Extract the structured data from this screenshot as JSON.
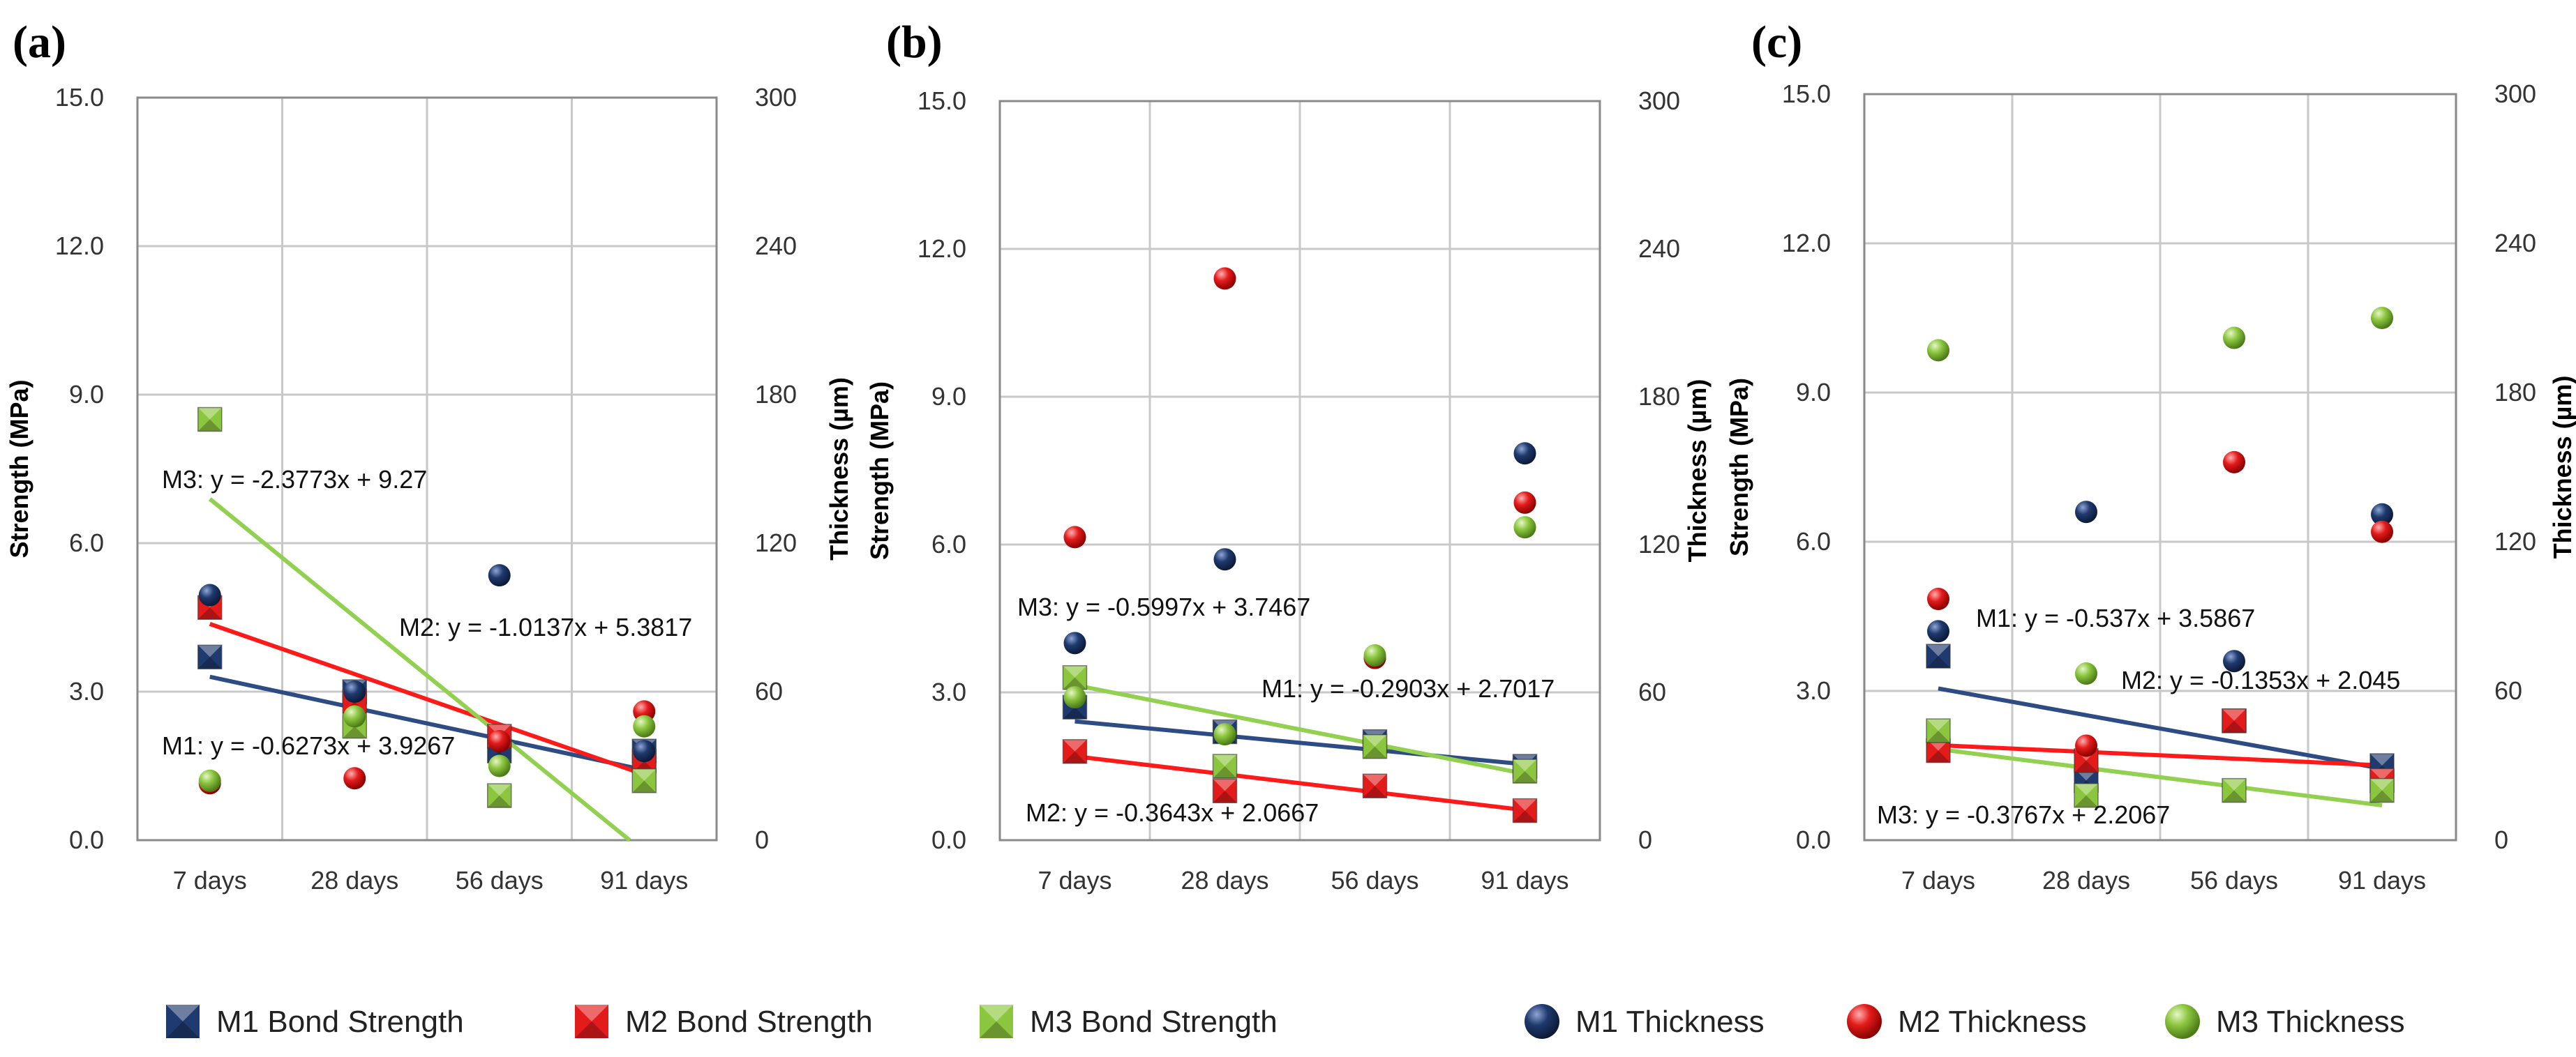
{
  "colors": {
    "M1": "#1f3a6e",
    "M2": "#e31b1b",
    "M3": "#8cc63f",
    "M1_line": "#2e4c84",
    "M2_line": "#ff1a1a",
    "M3_line": "#92d050",
    "grid": "#c8c8c8",
    "frame": "#8a8a8a"
  },
  "legend": [
    {
      "series": "M1",
      "kind": "square",
      "label": "M1 Bond Strength"
    },
    {
      "series": "M2",
      "kind": "square",
      "label": "M2 Bond Strength"
    },
    {
      "series": "M3",
      "kind": "square",
      "label": "M3 Bond Strength"
    },
    {
      "series": "M1",
      "kind": "sphere",
      "label": "M1 Thickness"
    },
    {
      "series": "M2",
      "kind": "sphere",
      "label": "M2 Thickness"
    },
    {
      "series": "M3",
      "kind": "sphere",
      "label": "M3 Thickness"
    }
  ],
  "chart_data": [
    {
      "panel": "(a)",
      "type": "scatter",
      "categories": [
        "7 days",
        "28 days",
        "56 days",
        "91 days"
      ],
      "ylabel": "Strength (MPa)",
      "y2label": "Thickness (µm)",
      "ylim": [
        0,
        15
      ],
      "y2lim": [
        0,
        300
      ],
      "yticks": [
        "0.0",
        "3.0",
        "6.0",
        "9.0",
        "12.0",
        "15.0"
      ],
      "y2ticks": [
        "0",
        "60",
        "120",
        "180",
        "240",
        "300"
      ],
      "strength": {
        "M1": [
          3.7,
          3.0,
          1.8,
          1.8
        ],
        "M2": [
          4.7,
          2.8,
          2.1,
          1.6
        ],
        "M3": [
          8.5,
          2.3,
          0.9,
          1.2
        ]
      },
      "thickness": {
        "M1": [
          99,
          60,
          107,
          36
        ],
        "M2": [
          23,
          25,
          40,
          52
        ],
        "M3": [
          24,
          50,
          30,
          46
        ]
      },
      "trendlines": [
        {
          "series": "M1",
          "slope": -0.6273,
          "intercept": 3.9267,
          "label": "M1: y = -0.6273x + 3.9267"
        },
        {
          "series": "M2",
          "slope": -1.0137,
          "intercept": 5.3817,
          "label": "M2: y = -1.0137x + 5.3817"
        },
        {
          "series": "M3",
          "slope": -2.3773,
          "intercept": 9.27,
          "label": "M3: y = -2.3773x + 9.27"
        }
      ]
    },
    {
      "panel": "(b)",
      "type": "scatter",
      "categories": [
        "7 days",
        "28 days",
        "56 days",
        "91 days"
      ],
      "ylabel": "Strength (MPa)",
      "y2label": "Thickness (µm)",
      "ylim": [
        0,
        15
      ],
      "y2lim": [
        0,
        300
      ],
      "yticks": [
        "0.0",
        "3.0",
        "6.0",
        "9.0",
        "12.0",
        "15.0"
      ],
      "y2ticks": [
        "0",
        "60",
        "120",
        "180",
        "240",
        "300"
      ],
      "strength": {
        "M1": [
          2.7,
          2.2,
          2.0,
          1.5
        ],
        "M2": [
          1.8,
          1.0,
          1.1,
          0.6
        ],
        "M3": [
          3.3,
          1.5,
          1.9,
          1.4
        ]
      },
      "thickness": {
        "M1": [
          80,
          114,
          74,
          157
        ],
        "M2": [
          123,
          228,
          74,
          137
        ],
        "M3": [
          58,
          43,
          75,
          127
        ]
      },
      "trendlines": [
        {
          "series": "M1",
          "slope": -0.2903,
          "intercept": 2.7017,
          "label": "M1: y = -0.2903x + 2.7017"
        },
        {
          "series": "M2",
          "slope": -0.3643,
          "intercept": 2.0667,
          "label": "M2: y = -0.3643x + 2.0667"
        },
        {
          "series": "M3",
          "slope": -0.5997,
          "intercept": 3.7467,
          "label": "M3: y = -0.5997x + 3.7467"
        }
      ]
    },
    {
      "panel": "(c)",
      "type": "scatter",
      "categories": [
        "7 days",
        "28 days",
        "56 days",
        "91 days"
      ],
      "ylabel": "Strength (MPa)",
      "y2label": "Thickness (µm)",
      "ylim": [
        0,
        15
      ],
      "y2lim": [
        0,
        300
      ],
      "yticks": [
        "0.0",
        "3.0",
        "6.0",
        "9.0",
        "12.0",
        "15.0"
      ],
      "y2ticks": [
        "0",
        "60",
        "120",
        "180",
        "240",
        "300"
      ],
      "strength": {
        "M1": [
          3.7,
          1.2,
          2.4,
          1.5
        ],
        "M2": [
          1.8,
          1.6,
          2.4,
          1.2
        ],
        "M3": [
          2.2,
          0.9,
          1.0,
          1.0
        ]
      },
      "thickness": {
        "M1": [
          84,
          132,
          72,
          131
        ],
        "M2": [
          97,
          38,
          152,
          124
        ],
        "M3": [
          197,
          67,
          202,
          210
        ]
      },
      "trendlines": [
        {
          "series": "M1",
          "slope": -0.537,
          "intercept": 3.5867,
          "label": "M1: y = -0.537x + 3.5867"
        },
        {
          "series": "M2",
          "slope": -0.1353,
          "intercept": 2.045,
          "label": "M2: y = -0.1353x + 2.045"
        },
        {
          "series": "M3",
          "slope": -0.3767,
          "intercept": 2.2067,
          "label": "M3: y = -0.3767x + 2.2067"
        }
      ]
    }
  ]
}
